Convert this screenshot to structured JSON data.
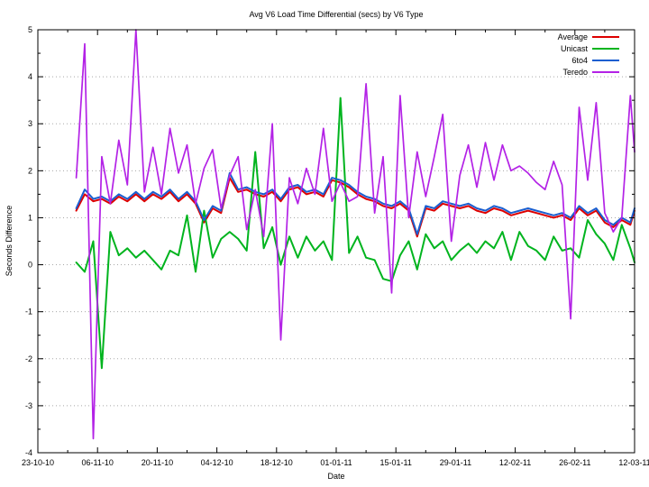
{
  "chart_data": {
    "type": "line",
    "title": "Avg V6 Load Time Differential (secs) by V6 Type",
    "xlabel": "Date",
    "ylabel": "Seconds Difference",
    "ylim": [
      -4,
      5
    ],
    "xlim_days": [
      0,
      140
    ],
    "x_tick_interval_days": 14,
    "x_minor_tick_interval_days": 7,
    "y_tick_interval": 1,
    "y_minor_tick_interval": 0.5,
    "x_tick_labels": [
      "23-10-10",
      "06-11-10",
      "20-11-10",
      "04-12-10",
      "18-12-10",
      "01-01-11",
      "15-01-11",
      "29-01-11",
      "12-02-11",
      "26-02-11",
      "12-03-11"
    ],
    "y_tick_labels": [
      "5",
      "4",
      "3",
      "2",
      "1",
      "0",
      "-1",
      "-2",
      "-3",
      "-4"
    ],
    "grid": {
      "horizontal": true,
      "vertical": false,
      "style": "dotted",
      "color": "#a8a8a8"
    },
    "axis_color": "#000000",
    "legend": {
      "position": "top-right-inside",
      "entries": [
        "Average",
        "Unicast",
        "6to4",
        "Teredo"
      ]
    },
    "x_days": [
      9,
      11,
      13,
      15,
      17,
      19,
      21,
      23,
      25,
      27,
      29,
      31,
      33,
      35,
      37,
      39,
      41,
      43,
      45,
      47,
      49,
      51,
      53,
      55,
      57,
      59,
      61,
      63,
      65,
      67,
      69,
      71,
      73,
      75,
      77,
      79,
      81,
      83,
      85,
      87,
      89,
      91,
      93,
      95,
      97,
      99,
      101,
      103,
      105,
      107,
      109,
      111,
      113,
      115,
      117,
      119,
      121,
      123,
      125,
      127,
      129,
      131,
      133,
      135,
      137,
      139,
      140
    ],
    "series": [
      {
        "name": "Average",
        "color": "#dd0000",
        "line_width": 2,
        "values": [
          1.15,
          1.5,
          1.35,
          1.4,
          1.3,
          1.45,
          1.35,
          1.5,
          1.35,
          1.5,
          1.4,
          1.55,
          1.35,
          1.5,
          1.3,
          0.9,
          1.2,
          1.1,
          1.85,
          1.55,
          1.6,
          1.5,
          1.45,
          1.55,
          1.35,
          1.6,
          1.65,
          1.5,
          1.55,
          1.45,
          1.8,
          1.75,
          1.65,
          1.5,
          1.4,
          1.35,
          1.25,
          1.2,
          1.3,
          1.15,
          0.6,
          1.2,
          1.15,
          1.3,
          1.25,
          1.2,
          1.25,
          1.15,
          1.1,
          1.2,
          1.15,
          1.05,
          1.1,
          1.15,
          1.1,
          1.05,
          1.0,
          1.05,
          0.95,
          1.2,
          1.05,
          1.15,
          0.9,
          0.8,
          0.95,
          0.85,
          1.15
        ]
      },
      {
        "name": "Unicast",
        "color": "#00b41e",
        "line_width": 2,
        "values": [
          0.05,
          -0.15,
          0.5,
          -2.2,
          0.7,
          0.2,
          0.35,
          0.15,
          0.3,
          0.1,
          -0.1,
          0.3,
          0.2,
          1.05,
          -0.15,
          1.15,
          0.15,
          0.55,
          0.7,
          0.55,
          0.3,
          2.4,
          0.35,
          0.8,
          0.0,
          0.6,
          0.15,
          0.6,
          0.3,
          0.5,
          0.1,
          3.55,
          0.25,
          0.6,
          0.15,
          0.1,
          -0.3,
          -0.35,
          0.2,
          0.5,
          -0.1,
          0.65,
          0.35,
          0.5,
          0.1,
          0.3,
          0.45,
          0.25,
          0.5,
          0.35,
          0.7,
          0.1,
          0.7,
          0.4,
          0.3,
          0.1,
          0.6,
          0.3,
          0.35,
          0.15,
          0.95,
          0.65,
          0.45,
          0.1,
          0.85,
          0.35,
          0.05
        ]
      },
      {
        "name": "6to4",
        "color": "#1a5fd0",
        "line_width": 2,
        "values": [
          1.2,
          1.6,
          1.4,
          1.45,
          1.35,
          1.5,
          1.4,
          1.55,
          1.4,
          1.55,
          1.45,
          1.6,
          1.4,
          1.55,
          1.35,
          0.95,
          1.25,
          1.15,
          1.95,
          1.6,
          1.65,
          1.55,
          1.5,
          1.6,
          1.4,
          1.65,
          1.7,
          1.55,
          1.6,
          1.5,
          1.85,
          1.8,
          1.7,
          1.55,
          1.45,
          1.4,
          1.3,
          1.25,
          1.35,
          1.2,
          0.65,
          1.25,
          1.2,
          1.35,
          1.3,
          1.25,
          1.3,
          1.2,
          1.15,
          1.25,
          1.2,
          1.1,
          1.15,
          1.2,
          1.15,
          1.1,
          1.05,
          1.1,
          1.0,
          1.25,
          1.1,
          1.2,
          0.95,
          0.85,
          1.0,
          0.9,
          1.2
        ]
      },
      {
        "name": "Teredo",
        "color": "#b322e6",
        "line_width": 1.7,
        "values": [
          1.85,
          4.7,
          -3.7,
          2.3,
          1.3,
          2.65,
          1.7,
          5.0,
          1.55,
          2.5,
          1.5,
          2.9,
          1.95,
          2.55,
          1.3,
          2.05,
          2.45,
          1.2,
          1.9,
          2.3,
          0.75,
          1.6,
          0.6,
          3.0,
          -1.6,
          1.85,
          1.3,
          2.05,
          1.5,
          2.9,
          1.35,
          1.75,
          1.35,
          1.45,
          3.85,
          1.1,
          2.3,
          -0.6,
          3.6,
          1.0,
          2.4,
          1.45,
          2.3,
          3.2,
          0.5,
          1.9,
          2.55,
          1.65,
          2.6,
          1.8,
          2.55,
          2.0,
          2.1,
          1.95,
          1.75,
          1.6,
          2.2,
          1.7,
          -1.15,
          3.35,
          1.8,
          3.45,
          1.1,
          0.7,
          1.0,
          3.6,
          2.4
        ]
      }
    ]
  }
}
